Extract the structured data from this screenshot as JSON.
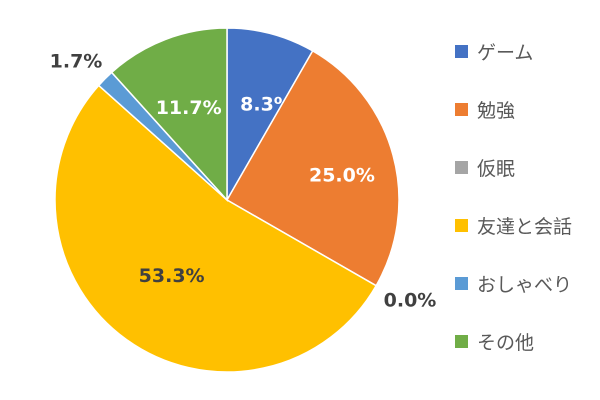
{
  "chart_data": {
    "type": "pie",
    "title": "",
    "legend_position": "right",
    "start_angle_deg": 0,
    "direction": "clockwise",
    "slices": [
      {
        "name": "ゲーム",
        "value": 8.3,
        "label": "8.3%",
        "color": "#4472C4",
        "label_color": "#ffffff"
      },
      {
        "name": "勉強",
        "value": 25.0,
        "label": "25.0%",
        "color": "#ED7D31",
        "label_color": "#ffffff"
      },
      {
        "name": "仮眠",
        "value": 0.0,
        "label": "0.0%",
        "color": "#A5A5A5",
        "label_color": "#404040"
      },
      {
        "name": "友達と会話",
        "value": 53.3,
        "label": "53.3%",
        "color": "#FFC000",
        "label_color": "#404040"
      },
      {
        "name": "おしゃべり",
        "value": 1.7,
        "label": "1.7%",
        "color": "#5B9BD5",
        "label_color": "#404040"
      },
      {
        "name": "その他",
        "value": 11.7,
        "label": "11.7%",
        "color": "#70AD47",
        "label_color": "#ffffff"
      }
    ]
  }
}
